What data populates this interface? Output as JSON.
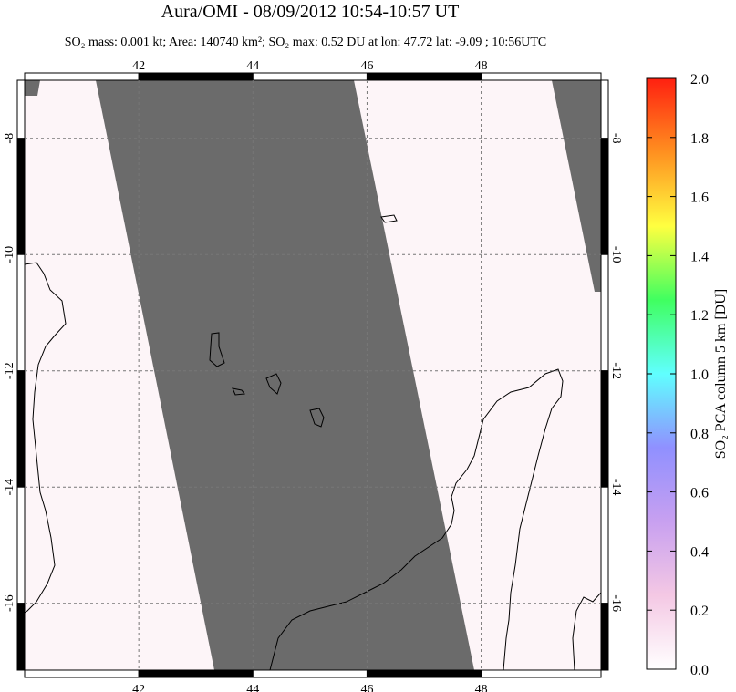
{
  "chart_data": {
    "type": "map",
    "title": "Aura/OMI - 08/09/2012 10:54-10:57 UT",
    "subtitle": "SO₂ mass: 0.001 kt; Area: 140740 km²; SO₂ max: 0.52 DU at lon: 47.72 lat: -9.09 ; 10:56UTC",
    "xlim": [
      40,
      50.1
    ],
    "ylim": [
      -17.15,
      -7
    ],
    "xticks": [
      42,
      44,
      46,
      48
    ],
    "yticks": [
      -8,
      -10,
      -12,
      -14,
      -16
    ],
    "grid": true,
    "colorbar": {
      "label": "SO₂ PCA column 5 km [DU]",
      "lim": [
        0,
        2
      ],
      "ticks": [
        {
          "value": 0,
          "label": "0.0"
        },
        0.2,
        0.4,
        0.6,
        0.8,
        {
          "value": 1,
          "label": "1.0"
        },
        1.2,
        1.4,
        1.6,
        1.8,
        {
          "value": 2,
          "label": "2.0"
        }
      ],
      "colors": [
        "#ffffff",
        "#f4c8e4",
        "#c8a0f0",
        "#9090ff",
        "#60ffff",
        "#40ff60",
        "#ffff40",
        "#ff9020",
        "#ff2010"
      ]
    }
  }
}
